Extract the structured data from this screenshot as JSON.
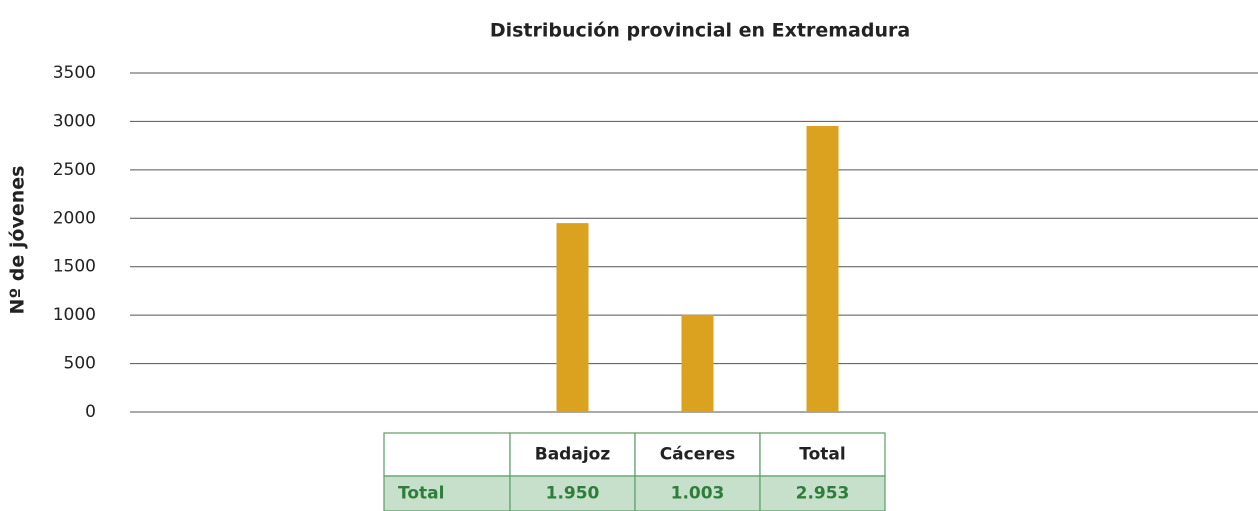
{
  "chart_data": {
    "type": "bar",
    "title": "Distribución provincial en Extremadura",
    "y_label": "Nº de jóvenes",
    "categories": [
      "Badajoz",
      "Cáceres",
      "Total"
    ],
    "values": [
      1950,
      1003,
      2953
    ],
    "value_labels": [
      "1.950",
      "1.003",
      "2.953"
    ],
    "table_row_label": "Total",
    "color": "#daa21f",
    "ylim": [
      0,
      3500
    ],
    "yticks": [
      0,
      500,
      1000,
      1500,
      2000,
      2500,
      3000,
      3500
    ],
    "grid": true
  }
}
